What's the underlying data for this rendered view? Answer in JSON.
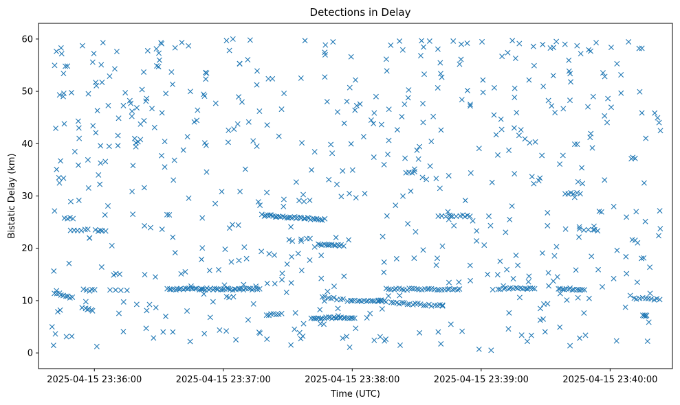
{
  "chart_data": {
    "type": "scatter",
    "title": "Detections in Delay",
    "xlabel": "Time (UTC)",
    "ylabel": "Bistatic Delay (km)",
    "marker": "x",
    "color": "#1f77b4",
    "x_unit": "seconds after 2025-04-15 23:35:00",
    "xlim": [
      34.0,
      329.0
    ],
    "ylim": [
      -3.0,
      63.0
    ],
    "grid": false,
    "x_ticks": [
      {
        "value": 60,
        "label": "2025-04-15 23:36:00"
      },
      {
        "value": 120,
        "label": "2025-04-15 23:37:00"
      },
      {
        "value": 180,
        "label": "2025-04-15 23:38:00"
      },
      {
        "value": 240,
        "label": "2025-04-15 23:39:00"
      },
      {
        "value": 300,
        "label": "2025-04-15 23:40:00"
      }
    ],
    "y_ticks": [
      {
        "value": 0,
        "label": "0"
      },
      {
        "value": 10,
        "label": "10"
      },
      {
        "value": 20,
        "label": "20"
      },
      {
        "value": 30,
        "label": "30"
      },
      {
        "value": 40,
        "label": "40"
      },
      {
        "value": 50,
        "label": "50"
      },
      {
        "value": 60,
        "label": "60"
      }
    ],
    "tracks": [
      {
        "x_start": 41.5,
        "x_end": 50.0,
        "y_start": 11.5,
        "y_end": 10.5,
        "count": 9
      },
      {
        "x_start": 46.0,
        "x_end": 50.0,
        "y_start": 25.8,
        "y_end": 25.8,
        "count": 4
      },
      {
        "x_start": 49.0,
        "x_end": 57.0,
        "y_start": 23.5,
        "y_end": 23.5,
        "count": 6
      },
      {
        "x_start": 55.0,
        "x_end": 60.0,
        "y_start": 12.0,
        "y_end": 12.0,
        "count": 5
      },
      {
        "x_start": 54.0,
        "x_end": 59.0,
        "y_start": 8.6,
        "y_end": 8.2,
        "count": 4
      },
      {
        "x_start": 60.5,
        "x_end": 65.0,
        "y_start": 23.4,
        "y_end": 23.4,
        "count": 5
      },
      {
        "x_start": 67.0,
        "x_end": 75.0,
        "y_start": 12.0,
        "y_end": 12.0,
        "count": 4
      },
      {
        "x_start": 69.0,
        "x_end": 71.5,
        "y_start": 15.0,
        "y_end": 15.0,
        "count": 3
      },
      {
        "x_start": 94.0,
        "x_end": 137.0,
        "y_start": 12.2,
        "y_end": 12.2,
        "count": 48
      },
      {
        "x_start": 138.0,
        "x_end": 167.0,
        "y_start": 26.3,
        "y_end": 25.5,
        "count": 34
      },
      {
        "x_start": 140.0,
        "x_end": 146.0,
        "y_start": 7.3,
        "y_end": 7.3,
        "count": 6
      },
      {
        "x_start": 155.0,
        "x_end": 160.0,
        "y_start": 29.0,
        "y_end": 29.0,
        "count": 3
      },
      {
        "x_start": 161.0,
        "x_end": 181.0,
        "y_start": 6.7,
        "y_end": 6.7,
        "count": 24
      },
      {
        "x_start": 164.0,
        "x_end": 176.0,
        "y_start": 20.8,
        "y_end": 20.5,
        "count": 14
      },
      {
        "x_start": 166.0,
        "x_end": 176.0,
        "y_start": 10.7,
        "y_end": 10.2,
        "count": 8
      },
      {
        "x_start": 178.0,
        "x_end": 196.0,
        "y_start": 10.0,
        "y_end": 9.9,
        "count": 18
      },
      {
        "x_start": 196.0,
        "x_end": 230.0,
        "y_start": 12.2,
        "y_end": 12.2,
        "count": 30
      },
      {
        "x_start": 198.0,
        "x_end": 222.0,
        "y_start": 9.6,
        "y_end": 9.0,
        "count": 20
      },
      {
        "x_start": 205.0,
        "x_end": 209.0,
        "y_start": 34.6,
        "y_end": 34.6,
        "count": 4
      },
      {
        "x_start": 220.0,
        "x_end": 235.0,
        "y_start": 26.2,
        "y_end": 26.2,
        "count": 10
      },
      {
        "x_start": 248.0,
        "x_end": 265.0,
        "y_start": 12.3,
        "y_end": 12.3,
        "count": 16
      },
      {
        "x_start": 276.0,
        "x_end": 288.0,
        "y_start": 12.3,
        "y_end": 12.1,
        "count": 14
      },
      {
        "x_start": 279.0,
        "x_end": 283.0,
        "y_start": 30.5,
        "y_end": 30.5,
        "count": 4
      },
      {
        "x_start": 288.0,
        "x_end": 294.0,
        "y_start": 23.4,
        "y_end": 23.4,
        "count": 4
      },
      {
        "x_start": 311.0,
        "x_end": 323.0,
        "y_start": 10.5,
        "y_end": 10.2,
        "count": 10
      },
      {
        "x_start": 315.0,
        "x_end": 317.0,
        "y_start": 7.3,
        "y_end": 7.3,
        "count": 3
      }
    ],
    "scatter_background": {
      "x_range": [
        40.0,
        324.0
      ],
      "y_range": [
        0.5,
        60.0
      ],
      "count": 560,
      "seed": 20250415
    },
    "points": [
      [
        43.5,
        33.5
      ],
      [
        44.5,
        58.3
      ],
      [
        44.8,
        57.2
      ],
      [
        46.5,
        54.8
      ],
      [
        45.5,
        49.0
      ],
      [
        46.0,
        43.8
      ],
      [
        47.0,
        3.1
      ],
      [
        52.5,
        44.3
      ],
      [
        52.8,
        43.0
      ],
      [
        57.0,
        36.9
      ],
      [
        64.0,
        59.3
      ],
      [
        69.5,
        54.3
      ],
      [
        90.0,
        57.3
      ],
      [
        91.0,
        59.3
      ],
      [
        121.5,
        59.7
      ],
      [
        132.5,
        59.8
      ],
      [
        158.0,
        59.7
      ],
      [
        202.0,
        59.6
      ],
      [
        216.0,
        59.6
      ],
      [
        227.0,
        59.6
      ],
      [
        233.5,
        59.2
      ],
      [
        254.5,
        59.7
      ],
      [
        279.0,
        59.0
      ],
      [
        293.5,
        59.3
      ],
      [
        300.5,
        58.4
      ],
      [
        313.5,
        58.2
      ],
      [
        239.0,
        0.7
      ],
      [
        195.0,
        2.3
      ],
      [
        303.0,
        2.3
      ],
      [
        92.0,
        4.0
      ],
      [
        157.0,
        3.2
      ],
      [
        262.0,
        13.6
      ]
    ]
  }
}
